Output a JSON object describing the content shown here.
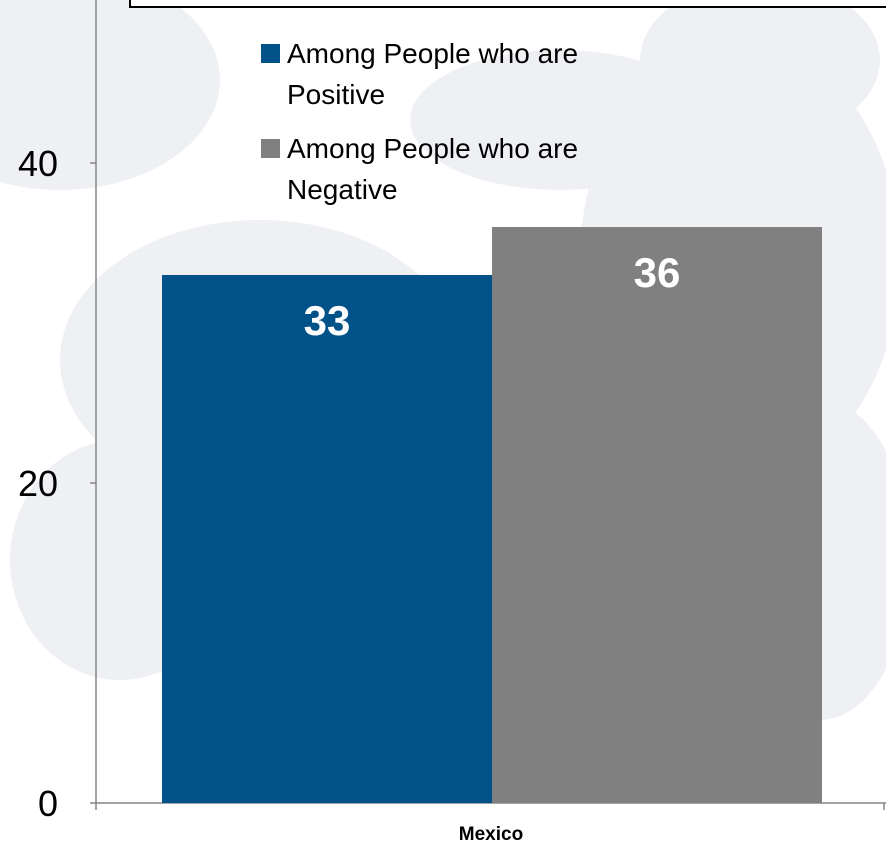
{
  "chart_data": {
    "type": "bar",
    "categories": [
      "Mexico"
    ],
    "series": [
      {
        "name": "Among People who are Positive",
        "values": [
          33
        ],
        "color": "#005288"
      },
      {
        "name": "Among People who are Negative",
        "values": [
          36
        ],
        "color": "#808080"
      }
    ],
    "yticks": [
      0,
      20,
      40
    ],
    "ylim": [
      0,
      40
    ],
    "legend_placement": "top-left inside plot",
    "grid": false,
    "background": "faint world-map pattern"
  },
  "legend": {
    "items": [
      {
        "line1": "Among People who are",
        "line2": "Positive"
      },
      {
        "line1": "Among People who are",
        "line2": "Negative"
      }
    ]
  }
}
